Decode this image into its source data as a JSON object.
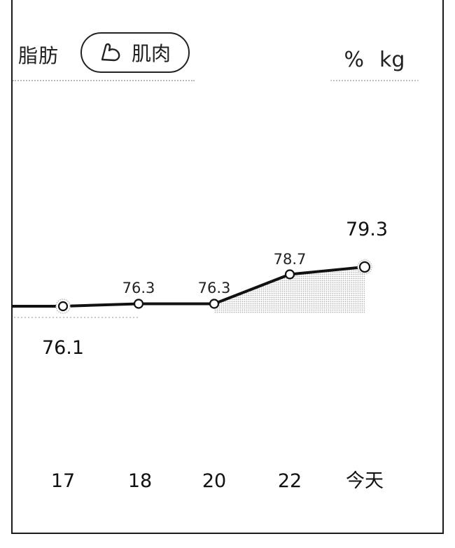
{
  "header": {
    "tabs": [
      {
        "label": "脂肪",
        "selected": false
      },
      {
        "label": "肌肉",
        "selected": true,
        "icon": "bicep-icon"
      }
    ],
    "units": [
      "%",
      "kg"
    ]
  },
  "chart_data": {
    "type": "line",
    "categories": [
      "17",
      "18",
      "20",
      "22",
      "今天"
    ],
    "values": [
      76.1,
      76.3,
      76.3,
      78.7,
      79.3
    ],
    "value_labels": [
      "76.1",
      "76.3",
      "76.3",
      "78.7",
      "79.3"
    ],
    "grid": false
  }
}
